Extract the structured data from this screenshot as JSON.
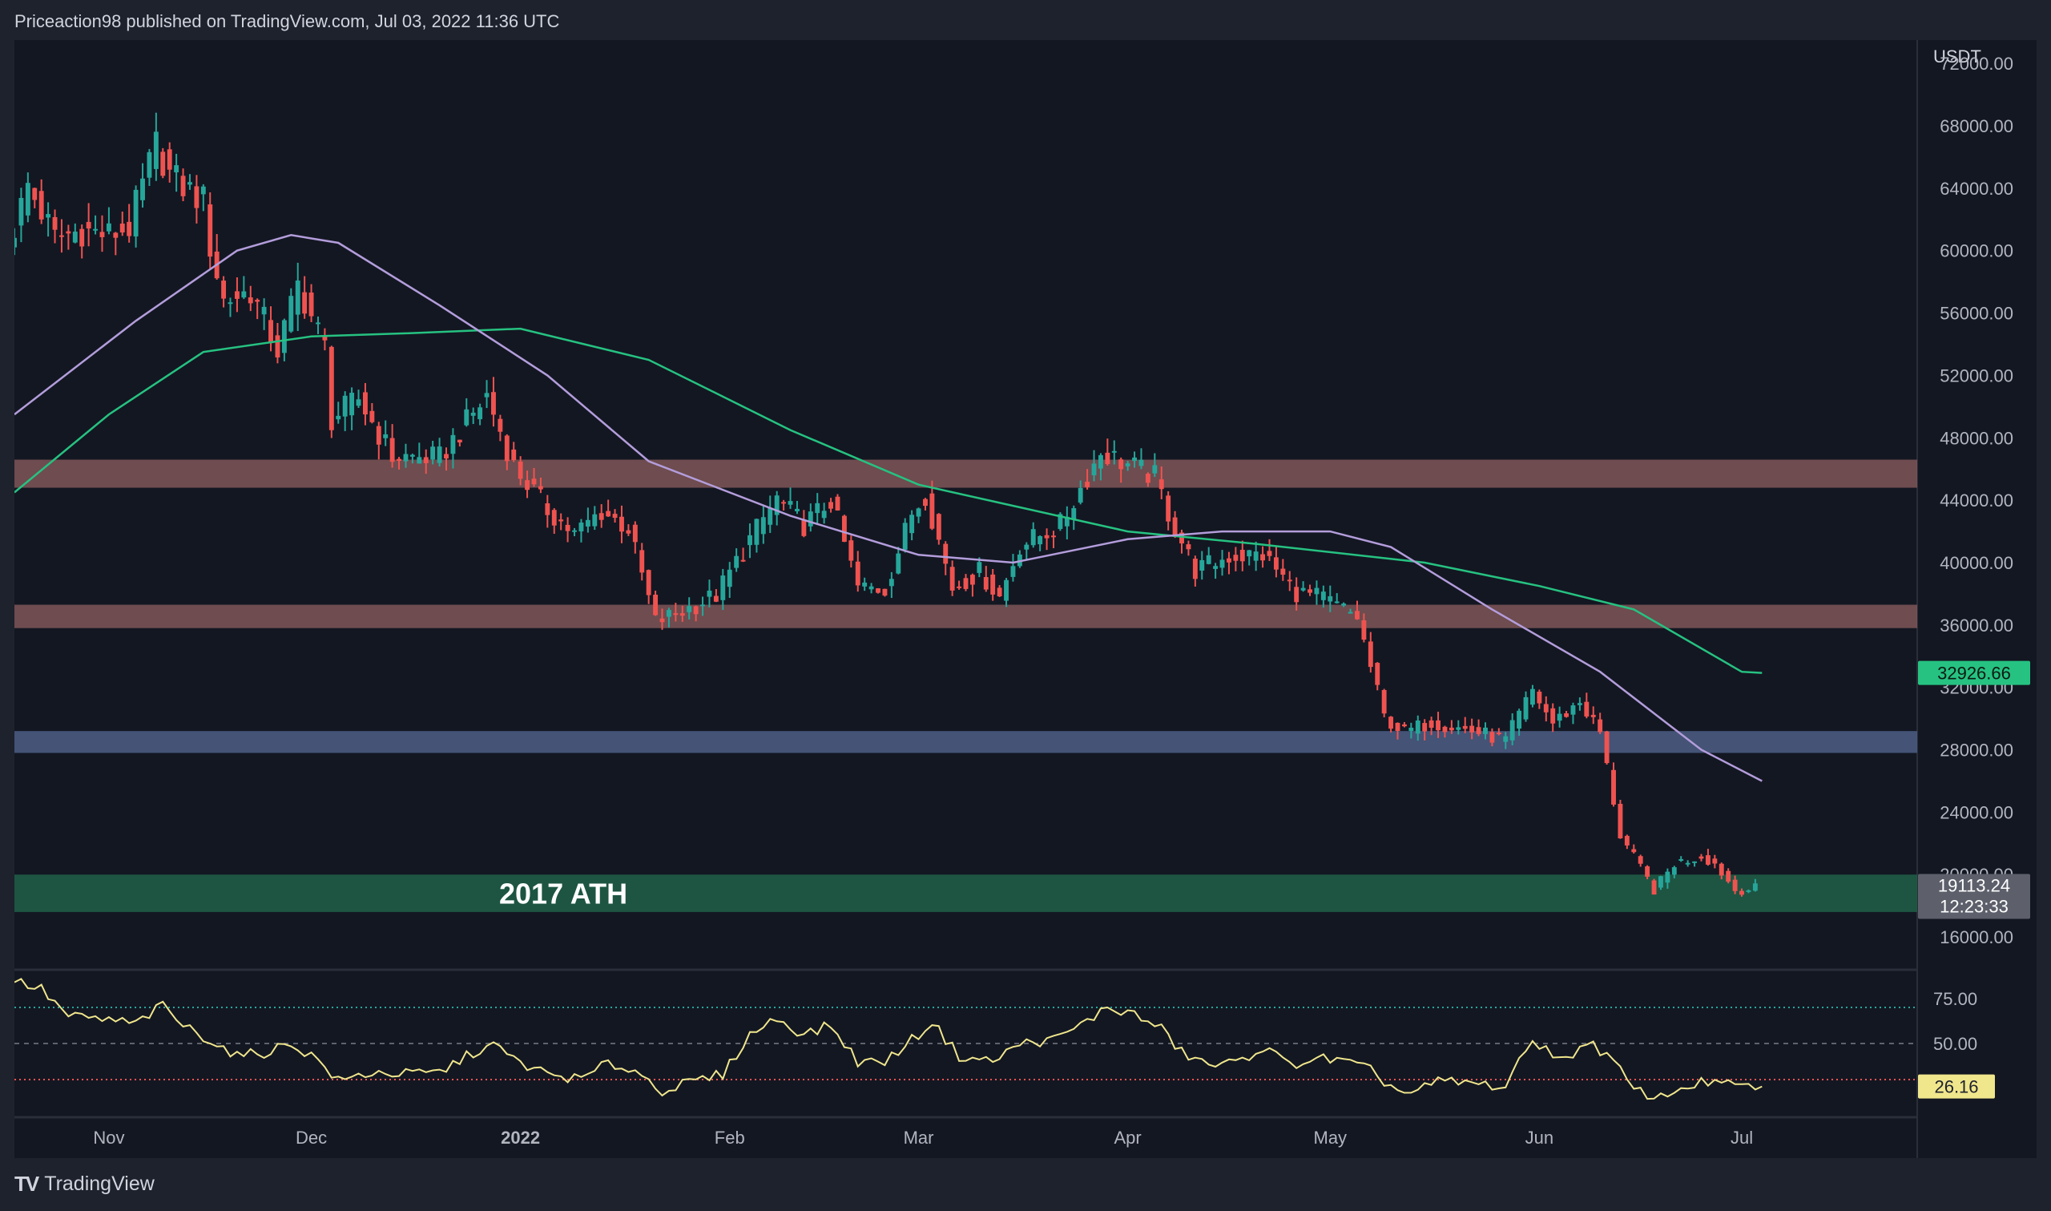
{
  "header": {
    "published_text": "Priceaction98 published on TradingView.com, Jul 03, 2022 11:36 UTC"
  },
  "footer": {
    "logo_text": "TradingView",
    "logo_icon": "tradingview-logo-icon"
  },
  "colors": {
    "background": "#131722",
    "frame": "#1e222d",
    "up_candle": "#26a69a",
    "down_candle": "#ef5350",
    "ma_fast": "#b39ddb",
    "ma_slow": "#26c281",
    "rsi": "#f0e68c",
    "resistance_zone": "#8d5f5f",
    "blue_zone": "#4a5a80",
    "ath_zone": "#1f5c46"
  },
  "chart_data": {
    "type": "candlestick",
    "currency_label": "USDT",
    "price_axis_ticks": [
      "72000.00",
      "68000.00",
      "64000.00",
      "60000.00",
      "56000.00",
      "52000.00",
      "48000.00",
      "44000.00",
      "40000.00",
      "36000.00",
      "32000.00",
      "28000.00",
      "24000.00",
      "20000.00",
      "16000.00"
    ],
    "ylim": [
      14000,
      73500
    ],
    "time_labels": [
      {
        "label": "Nov",
        "date": "2021-11-01",
        "bold": false
      },
      {
        "label": "Dec",
        "date": "2021-12-01",
        "bold": false
      },
      {
        "label": "2022",
        "date": "2022-01-01",
        "bold": true
      },
      {
        "label": "Feb",
        "date": "2022-02-01",
        "bold": false
      },
      {
        "label": "Mar",
        "date": "2022-03-01",
        "bold": false
      },
      {
        "label": "Apr",
        "date": "2022-04-01",
        "bold": false
      },
      {
        "label": "May",
        "date": "2022-05-01",
        "bold": false
      },
      {
        "label": "Jun",
        "date": "2022-06-01",
        "bold": false
      },
      {
        "label": "Jul",
        "date": "2022-07-01",
        "bold": false
      }
    ],
    "xlim": [
      "2021-10-18",
      "2022-07-27"
    ],
    "close_waypoints": [
      [
        "2021-10-18",
        61500
      ],
      [
        "2021-10-20",
        64200
      ],
      [
        "2021-10-24",
        60800
      ],
      [
        "2021-10-28",
        61300
      ],
      [
        "2021-11-01",
        61000
      ],
      [
        "2021-11-04",
        61500
      ],
      [
        "2021-11-08",
        66800
      ],
      [
        "2021-11-10",
        64900
      ],
      [
        "2021-11-12",
        64100
      ],
      [
        "2021-11-15",
        63200
      ],
      [
        "2021-11-16",
        60300
      ],
      [
        "2021-11-18",
        56800
      ],
      [
        "2021-11-22",
        57400
      ],
      [
        "2021-11-26",
        53600
      ],
      [
        "2021-11-29",
        57800
      ],
      [
        "2021-12-03",
        53800
      ],
      [
        "2021-12-04",
        49200
      ],
      [
        "2021-12-08",
        50500
      ],
      [
        "2021-12-13",
        46800
      ],
      [
        "2021-12-20",
        46700
      ],
      [
        "2021-12-27",
        50700
      ],
      [
        "2021-12-31",
        46200
      ],
      [
        "2022-01-05",
        43400
      ],
      [
        "2022-01-09",
        41800
      ],
      [
        "2022-01-13",
        43300
      ],
      [
        "2022-01-17",
        42200
      ],
      [
        "2022-01-21",
        36200
      ],
      [
        "2022-01-24",
        36700
      ],
      [
        "2022-01-30",
        37900
      ],
      [
        "2022-02-04",
        41500
      ],
      [
        "2022-02-08",
        44100
      ],
      [
        "2022-02-12",
        42400
      ],
      [
        "2022-02-16",
        44000
      ],
      [
        "2022-02-20",
        38400
      ],
      [
        "2022-02-24",
        38300
      ],
      [
        "2022-02-28",
        43200
      ],
      [
        "2022-03-02",
        44400
      ],
      [
        "2022-03-06",
        38400
      ],
      [
        "2022-03-10",
        39400
      ],
      [
        "2022-03-13",
        37800
      ],
      [
        "2022-03-16",
        41100
      ],
      [
        "2022-03-22",
        42400
      ],
      [
        "2022-03-28",
        47100
      ],
      [
        "2022-04-01",
        46300
      ],
      [
        "2022-04-05",
        45500
      ],
      [
        "2022-04-07",
        43200
      ],
      [
        "2022-04-11",
        39500
      ],
      [
        "2022-04-16",
        40400
      ],
      [
        "2022-04-21",
        40500
      ],
      [
        "2022-04-26",
        38100
      ],
      [
        "2022-04-30",
        37700
      ],
      [
        "2022-05-05",
        36500
      ],
      [
        "2022-05-09",
        30100
      ],
      [
        "2022-05-12",
        29100
      ],
      [
        "2022-05-16",
        29800
      ],
      [
        "2022-05-23",
        29100
      ],
      [
        "2022-05-27",
        28600
      ],
      [
        "2022-05-31",
        31800
      ],
      [
        "2022-06-03",
        29700
      ],
      [
        "2022-06-07",
        31100
      ],
      [
        "2022-06-10",
        29100
      ],
      [
        "2022-06-13",
        22500
      ],
      [
        "2022-06-16",
        20400
      ],
      [
        "2022-06-18",
        19000
      ],
      [
        "2022-06-21",
        20700
      ],
      [
        "2022-06-25",
        21200
      ],
      [
        "2022-06-27",
        20700
      ],
      [
        "2022-06-30",
        19000
      ],
      [
        "2022-07-03",
        19113
      ]
    ],
    "ma_slow_points": [
      [
        "2021-10-18",
        44500
      ],
      [
        "2021-11-01",
        49500
      ],
      [
        "2021-11-15",
        53500
      ],
      [
        "2021-12-01",
        54500
      ],
      [
        "2021-12-15",
        54700
      ],
      [
        "2022-01-01",
        55000
      ],
      [
        "2022-01-20",
        53000
      ],
      [
        "2022-02-10",
        48500
      ],
      [
        "2022-03-01",
        45000
      ],
      [
        "2022-04-01",
        42000
      ],
      [
        "2022-04-20",
        41200
      ],
      [
        "2022-05-15",
        40000
      ],
      [
        "2022-06-01",
        38500
      ],
      [
        "2022-06-15",
        37000
      ],
      [
        "2022-07-01",
        33000
      ],
      [
        "2022-07-04",
        32927
      ]
    ],
    "ma_fast_points": [
      [
        "2021-10-18",
        49500
      ],
      [
        "2021-11-05",
        55500
      ],
      [
        "2021-11-20",
        60000
      ],
      [
        "2021-11-28",
        61000
      ],
      [
        "2021-12-05",
        60500
      ],
      [
        "2021-12-20",
        56500
      ],
      [
        "2022-01-05",
        52000
      ],
      [
        "2022-01-20",
        46500
      ],
      [
        "2022-02-10",
        43000
      ],
      [
        "2022-03-01",
        40500
      ],
      [
        "2022-03-15",
        40000
      ],
      [
        "2022-04-01",
        41500
      ],
      [
        "2022-04-15",
        42000
      ],
      [
        "2022-05-01",
        42000
      ],
      [
        "2022-05-10",
        41000
      ],
      [
        "2022-05-25",
        37000
      ],
      [
        "2022-06-10",
        33000
      ],
      [
        "2022-06-25",
        28000
      ],
      [
        "2022-07-04",
        26000
      ]
    ],
    "zones": [
      {
        "name": "resistance-zone-upper",
        "low": 44800,
        "high": 46600,
        "label": ""
      },
      {
        "name": "resistance-zone-lower",
        "low": 35800,
        "high": 37300,
        "label": ""
      },
      {
        "name": "support-zone-blue",
        "low": 27800,
        "high": 29200,
        "label": ""
      },
      {
        "name": "ath-zone",
        "low": 17600,
        "high": 20000,
        "label": "2017 ATH"
      }
    ],
    "badges": {
      "ma_value": "32926.66",
      "last_price": "19113.24",
      "countdown": "12:23:33"
    },
    "rsi": {
      "ticks": [
        "75.00",
        "50.00"
      ],
      "levels": {
        "upper": 70,
        "middle": 50,
        "lower": 30
      },
      "ylim": [
        10,
        90
      ],
      "current": "26.16",
      "points": [
        [
          "2021-10-18",
          85
        ],
        [
          "2021-10-22",
          80
        ],
        [
          "2021-10-26",
          65
        ],
        [
          "2021-11-01",
          63
        ],
        [
          "2021-11-05",
          61
        ],
        [
          "2021-11-09",
          71
        ],
        [
          "2021-11-12",
          60
        ],
        [
          "2021-11-16",
          52
        ],
        [
          "2021-11-20",
          43
        ],
        [
          "2021-11-24",
          45
        ],
        [
          "2021-11-28",
          50
        ],
        [
          "2021-12-02",
          41
        ],
        [
          "2021-12-05",
          29
        ],
        [
          "2021-12-10",
          34
        ],
        [
          "2021-12-15",
          33
        ],
        [
          "2021-12-20",
          34
        ],
        [
          "2021-12-25",
          45
        ],
        [
          "2021-12-28",
          49
        ],
        [
          "2022-01-01",
          39
        ],
        [
          "2022-01-05",
          33
        ],
        [
          "2022-01-10",
          30
        ],
        [
          "2022-01-14",
          39
        ],
        [
          "2022-01-18",
          35
        ],
        [
          "2022-01-22",
          24
        ],
        [
          "2022-01-26",
          28
        ],
        [
          "2022-01-31",
          33
        ],
        [
          "2022-02-04",
          55
        ],
        [
          "2022-02-08",
          64
        ],
        [
          "2022-02-12",
          55
        ],
        [
          "2022-02-16",
          60
        ],
        [
          "2022-02-20",
          40
        ],
        [
          "2022-02-24",
          40
        ],
        [
          "2022-03-01",
          55
        ],
        [
          "2022-03-03",
          62
        ],
        [
          "2022-03-07",
          43
        ],
        [
          "2022-03-12",
          40
        ],
        [
          "2022-03-16",
          50
        ],
        [
          "2022-03-21",
          52
        ],
        [
          "2022-03-25",
          60
        ],
        [
          "2022-03-29",
          70
        ],
        [
          "2022-04-02",
          66
        ],
        [
          "2022-04-06",
          58
        ],
        [
          "2022-04-09",
          45
        ],
        [
          "2022-04-13",
          38
        ],
        [
          "2022-04-17",
          39
        ],
        [
          "2022-04-21",
          48
        ],
        [
          "2022-04-25",
          38
        ],
        [
          "2022-04-29",
          42
        ],
        [
          "2022-05-03",
          40
        ],
        [
          "2022-05-07",
          35
        ],
        [
          "2022-05-10",
          26
        ],
        [
          "2022-05-13",
          22
        ],
        [
          "2022-05-17",
          29
        ],
        [
          "2022-05-22",
          28
        ],
        [
          "2022-05-27",
          26
        ],
        [
          "2022-05-31",
          52
        ],
        [
          "2022-06-05",
          40
        ],
        [
          "2022-06-08",
          52
        ],
        [
          "2022-06-12",
          40
        ],
        [
          "2022-06-15",
          24
        ],
        [
          "2022-06-19",
          20
        ],
        [
          "2022-06-23",
          27
        ],
        [
          "2022-06-27",
          29
        ],
        [
          "2022-06-30",
          26
        ],
        [
          "2022-07-04",
          26.16
        ]
      ]
    }
  }
}
